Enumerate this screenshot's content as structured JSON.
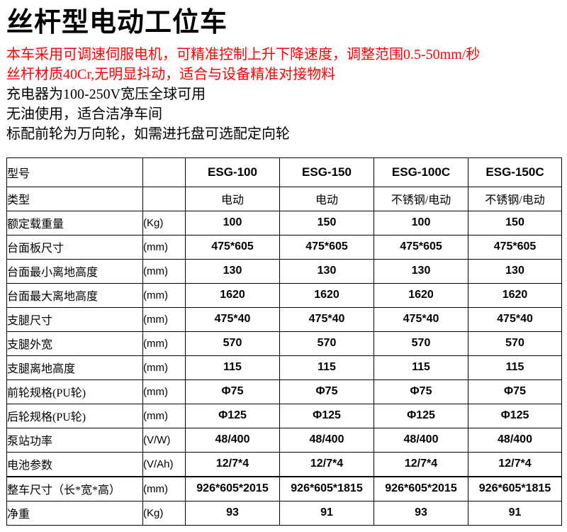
{
  "colors": {
    "accent_red": "#ff0000",
    "text": "#000000",
    "table_border": "#000000"
  },
  "title": "丝杆型电动工位车",
  "features": [
    "本车采用可调速伺服电机，可精准控制上升下降速度，调整范围0.5-50mm/秒",
    "丝杆材质40Cr,无明显抖动，适合与设备精准对接物料"
  ],
  "notes": [
    "充电器为100-250V宽压全球可用",
    "无油使用，适合洁净车间",
    "标配前轮为万向轮，如需进托盘可选配定向轮"
  ],
  "spec_table": {
    "header": {
      "label": "型号",
      "unit": "",
      "models": [
        "ESG-100",
        "ESG-150",
        "ESG-100C",
        "ESG-150C"
      ]
    },
    "rows": [
      {
        "label": "类型",
        "unit": "",
        "values": [
          "电动",
          "电动",
          "不锈钢/电动",
          "不锈钢/电动"
        ]
      },
      {
        "label": "额定载重量",
        "unit": "(Kg)",
        "values": [
          "100",
          "150",
          "100",
          "150"
        ]
      },
      {
        "label": "台面板尺寸",
        "unit": "(mm)",
        "values": [
          "475*605",
          "475*605",
          "475*605",
          "475*605"
        ]
      },
      {
        "label": "台面最小离地高度",
        "unit": "(mm)",
        "values": [
          "130",
          "130",
          "130",
          "130"
        ]
      },
      {
        "label": "台面最大离地高度",
        "unit": "(mm)",
        "values": [
          "1620",
          "1620",
          "1620",
          "1620"
        ]
      },
      {
        "label": "支腿尺寸",
        "unit": "(mm)",
        "values": [
          "475*40",
          "475*40",
          "475*40",
          "475*40"
        ]
      },
      {
        "label": "支腿外宽",
        "unit": "(mm)",
        "values": [
          "570",
          "570",
          "570",
          "570"
        ]
      },
      {
        "label": "支腿离地高度",
        "unit": "(mm)",
        "values": [
          "115",
          "115",
          "115",
          "115"
        ]
      },
      {
        "label": "前轮规格(PU轮)",
        "unit": "(mm)",
        "values": [
          "Φ75",
          "Φ75",
          "Φ75",
          "Φ75"
        ]
      },
      {
        "label": "后轮规格(PU轮)",
        "unit": "(mm)",
        "values": [
          "Φ125",
          "Φ125",
          "Φ125",
          "Φ125"
        ]
      },
      {
        "label": "泵站功率",
        "unit": "(V/W)",
        "values": [
          "48/400",
          "48/400",
          "48/400",
          "48/400"
        ]
      },
      {
        "label": "电池参数",
        "unit": "(V/Ah)",
        "values": [
          "12/7*4",
          "12/7*4",
          "12/7*4",
          "12/7*4"
        ]
      },
      {
        "label": "整车尺寸（长*宽*高）",
        "unit": "(mm)",
        "values": [
          "926*605*2015",
          "926*605*1815",
          "926*605*2015",
          "926*605*1815"
        ],
        "thick_top": true
      },
      {
        "label": "净重",
        "unit": "(Kg)",
        "values": [
          "93",
          "91",
          "93",
          "91"
        ]
      }
    ]
  }
}
